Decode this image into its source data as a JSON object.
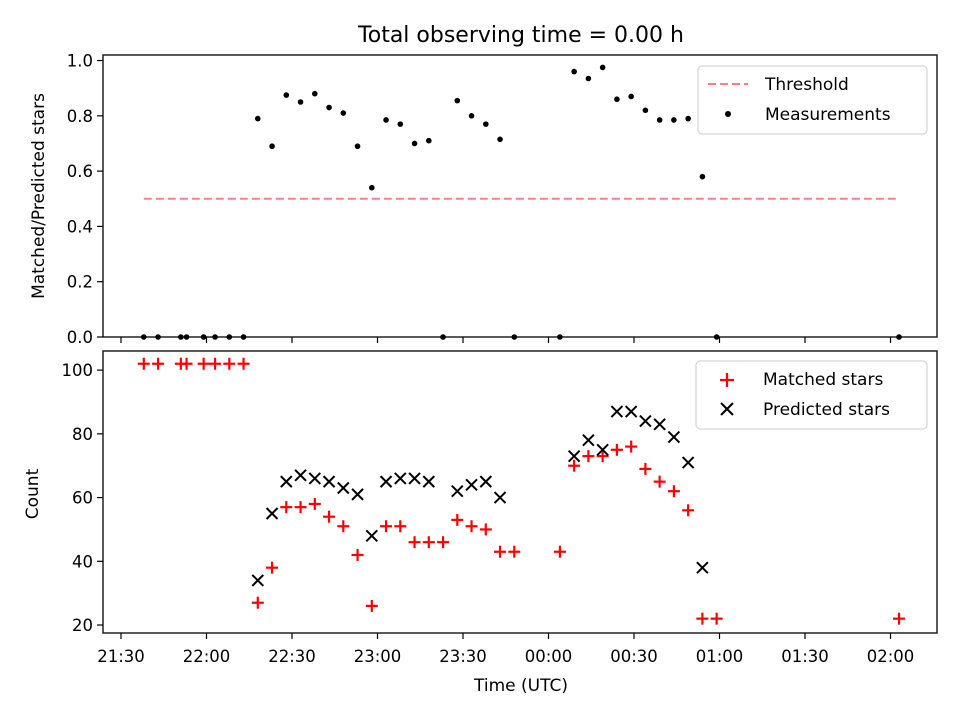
{
  "title": "Total observing time = 0.00 h",
  "chart_data": [
    {
      "type": "scatter",
      "ylabel": "Matched/Predicted stars",
      "ylim": [
        0,
        1.02
      ],
      "yticks": [
        "0.0",
        "0.2",
        "0.4",
        "0.6",
        "0.8",
        "1.0"
      ],
      "legend_position": "upper-right",
      "threshold": {
        "name": "Threshold",
        "y": 0.5,
        "x_range": [
          "21:38",
          "02:03"
        ],
        "color": "#ff7f7f"
      },
      "series": [
        {
          "name": "Measurements",
          "color": "#000000",
          "points": [
            [
              "21:38",
              0.0
            ],
            [
              "21:43",
              0.0
            ],
            [
              "21:51",
              0.0
            ],
            [
              "21:53",
              0.0
            ],
            [
              "21:59",
              0.0
            ],
            [
              "22:03",
              0.0
            ],
            [
              "22:08",
              0.0
            ],
            [
              "22:13",
              0.0
            ],
            [
              "22:18",
              0.79
            ],
            [
              "22:23",
              0.69
            ],
            [
              "22:28",
              0.875
            ],
            [
              "22:33",
              0.85
            ],
            [
              "22:38",
              0.88
            ],
            [
              "22:43",
              0.83
            ],
            [
              "22:48",
              0.81
            ],
            [
              "22:53",
              0.69
            ],
            [
              "22:58",
              0.54
            ],
            [
              "23:03",
              0.785
            ],
            [
              "23:08",
              0.77
            ],
            [
              "23:13",
              0.7
            ],
            [
              "23:18",
              0.71
            ],
            [
              "23:23",
              0.0
            ],
            [
              "23:28",
              0.855
            ],
            [
              "23:33",
              0.8
            ],
            [
              "23:38",
              0.77
            ],
            [
              "23:43",
              0.715
            ],
            [
              "23:48",
              0.0
            ],
            [
              "00:04",
              0.0
            ],
            [
              "00:09",
              0.96
            ],
            [
              "00:14",
              0.935
            ],
            [
              "00:19",
              0.975
            ],
            [
              "00:24",
              0.86
            ],
            [
              "00:29",
              0.87
            ],
            [
              "00:34",
              0.82
            ],
            [
              "00:39",
              0.785
            ],
            [
              "00:44",
              0.785
            ],
            [
              "00:49",
              0.79
            ],
            [
              "00:54",
              0.58
            ],
            [
              "00:59",
              0.0
            ],
            [
              "02:03",
              0.0
            ]
          ]
        }
      ]
    },
    {
      "type": "scatter",
      "xlabel": "Time (UTC)",
      "ylabel": "Count",
      "ylim": [
        17.5,
        106
      ],
      "yticks": [
        "20",
        "40",
        "60",
        "80",
        "100"
      ],
      "xticks": [
        "21:30",
        "22:00",
        "22:30",
        "23:00",
        "23:30",
        "00:00",
        "00:30",
        "01:00",
        "01:30",
        "02:00"
      ],
      "legend_position": "upper-right",
      "series": [
        {
          "name": "Matched stars",
          "marker": "+",
          "color": "#ff0000",
          "points": [
            [
              "21:38",
              102
            ],
            [
              "21:43",
              102
            ],
            [
              "21:51",
              102
            ],
            [
              "21:53",
              102
            ],
            [
              "21:59",
              102
            ],
            [
              "22:03",
              102
            ],
            [
              "22:08",
              102
            ],
            [
              "22:13",
              102
            ],
            [
              "22:18",
              27
            ],
            [
              "22:23",
              38
            ],
            [
              "22:28",
              57
            ],
            [
              "22:33",
              57
            ],
            [
              "22:38",
              58
            ],
            [
              "22:43",
              54
            ],
            [
              "22:48",
              51
            ],
            [
              "22:53",
              42
            ],
            [
              "22:58",
              26
            ],
            [
              "23:03",
              51
            ],
            [
              "23:08",
              51
            ],
            [
              "23:13",
              46
            ],
            [
              "23:18",
              46
            ],
            [
              "23:23",
              46
            ],
            [
              "23:28",
              53
            ],
            [
              "23:33",
              51
            ],
            [
              "23:38",
              50
            ],
            [
              "23:43",
              43
            ],
            [
              "23:48",
              43
            ],
            [
              "00:04",
              43
            ],
            [
              "00:09",
              70
            ],
            [
              "00:14",
              73
            ],
            [
              "00:19",
              73
            ],
            [
              "00:24",
              75
            ],
            [
              "00:29",
              76
            ],
            [
              "00:34",
              69
            ],
            [
              "00:39",
              65
            ],
            [
              "00:44",
              62
            ],
            [
              "00:49",
              56
            ],
            [
              "00:54",
              22
            ],
            [
              "00:59",
              22
            ],
            [
              "02:03",
              22
            ]
          ]
        },
        {
          "name": "Predicted stars",
          "marker": "x",
          "color": "#000000",
          "points": [
            [
              "22:18",
              34
            ],
            [
              "22:23",
              55
            ],
            [
              "22:28",
              65
            ],
            [
              "22:33",
              67
            ],
            [
              "22:38",
              66
            ],
            [
              "22:43",
              65
            ],
            [
              "22:48",
              63
            ],
            [
              "22:53",
              61
            ],
            [
              "22:58",
              48
            ],
            [
              "23:03",
              65
            ],
            [
              "23:08",
              66
            ],
            [
              "23:13",
              66
            ],
            [
              "23:18",
              65
            ],
            [
              "23:28",
              62
            ],
            [
              "23:33",
              64
            ],
            [
              "23:38",
              65
            ],
            [
              "23:43",
              60
            ],
            [
              "00:09",
              73
            ],
            [
              "00:14",
              78
            ],
            [
              "00:19",
              75
            ],
            [
              "00:24",
              87
            ],
            [
              "00:29",
              87
            ],
            [
              "00:34",
              84
            ],
            [
              "00:39",
              83
            ],
            [
              "00:44",
              79
            ],
            [
              "00:49",
              71
            ],
            [
              "00:54",
              38
            ]
          ]
        }
      ]
    }
  ]
}
